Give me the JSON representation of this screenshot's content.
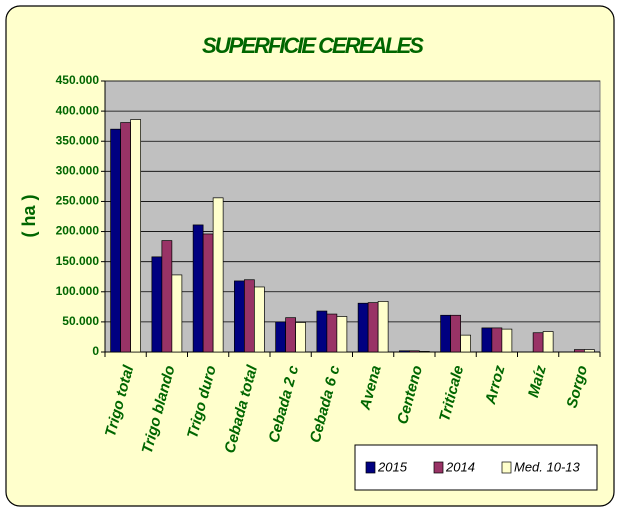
{
  "chart_data": {
    "type": "bar",
    "title": "SUPERFICIE CEREALES",
    "y_label": "( ha )",
    "categories": [
      "Trigo total",
      "Trigo blando",
      "Trigo duro",
      "Cebada total",
      "Cebada 2 c",
      "Cebada 6 c",
      "Avena",
      "Centeno",
      "Triticale",
      "Arroz",
      "Maíz",
      "Sorgo"
    ],
    "series": [
      {
        "name": "2015",
        "color": "#000080",
        "values": [
          370000,
          158000,
          211000,
          118000,
          50000,
          68000,
          81000,
          2000,
          61000,
          40000,
          null,
          null
        ]
      },
      {
        "name": "2014",
        "color": "#993366",
        "values": [
          381000,
          185000,
          196000,
          120000,
          57000,
          63000,
          82000,
          2000,
          61000,
          40000,
          32000,
          4000
        ]
      },
      {
        "name": "Med. 10-13",
        "color": "#ffffcc",
        "values": [
          386000,
          128000,
          256000,
          108000,
          49000,
          59000,
          84000,
          1000,
          28000,
          38000,
          34000,
          4000
        ]
      }
    ],
    "ylim": [
      0,
      450000
    ],
    "yticks": [
      0,
      {
        "value": 50000,
        "label": "50.000"
      },
      {
        "value": 100000,
        "label": "100.000"
      },
      {
        "value": 150000,
        "label": "150.000"
      },
      {
        "value": 200000,
        "label": "200.000"
      },
      {
        "value": 250000,
        "label": "250.000"
      },
      {
        "value": 300000,
        "label": "300.000"
      },
      {
        "value": 350000,
        "label": "350.000"
      },
      {
        "value": 400000,
        "label": "400.000"
      },
      {
        "value": 450000,
        "label": "450.000"
      }
    ],
    "grid": true,
    "legend": "bottom-right"
  }
}
